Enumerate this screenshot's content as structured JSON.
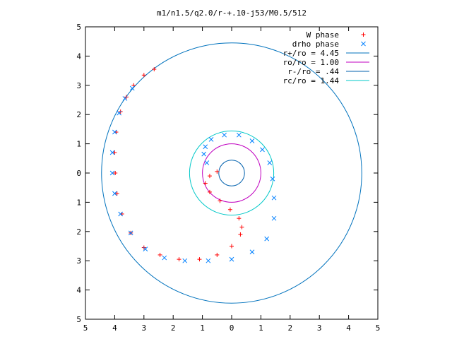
{
  "chart_data": {
    "type": "scatter",
    "title": "m1/n1.5/q2.0/r-+.10-j53/M0.5/512",
    "xlabel": "",
    "ylabel": "",
    "xlim": [
      -5,
      5
    ],
    "ylim": [
      -5,
      5
    ],
    "x_ticks": [
      -5,
      -4,
      -3,
      -2,
      -1,
      0,
      1,
      2,
      3,
      4,
      5
    ],
    "y_ticks": [
      -5,
      -4,
      -3,
      -2,
      -1,
      0,
      1,
      2,
      3,
      4,
      5
    ],
    "x_tick_labels": [
      "5",
      "4",
      "3",
      "2",
      "1",
      "0",
      "1",
      "2",
      "3",
      "4",
      "5"
    ],
    "y_tick_labels": [
      "5",
      "4",
      "3",
      "2",
      "1",
      "0",
      "1",
      "2",
      "3",
      "4",
      "5"
    ],
    "grid": false,
    "legend_position": "top-right",
    "series": [
      {
        "name": "W phase",
        "marker": "plus",
        "color": "#ff0000",
        "points": [
          [
            -2.65,
            3.55
          ],
          [
            -3.0,
            3.35
          ],
          [
            -3.35,
            3.0
          ],
          [
            -3.6,
            2.6
          ],
          [
            -3.8,
            2.1
          ],
          [
            -3.95,
            1.4
          ],
          [
            -4.0,
            0.7
          ],
          [
            -3.98,
            0.0
          ],
          [
            -3.92,
            -0.7
          ],
          [
            -3.75,
            -1.4
          ],
          [
            -3.45,
            -2.05
          ],
          [
            -3.0,
            -2.55
          ],
          [
            -2.45,
            -2.8
          ],
          [
            -1.8,
            -2.95
          ],
          [
            -1.1,
            -2.95
          ],
          [
            -0.5,
            -2.8
          ],
          [
            0.0,
            -2.5
          ],
          [
            0.3,
            -2.1
          ],
          [
            0.35,
            -1.85
          ],
          [
            0.25,
            -1.55
          ],
          [
            -0.05,
            -1.25
          ],
          [
            -0.4,
            -0.95
          ],
          [
            -0.75,
            -0.65
          ],
          [
            -0.9,
            -0.35
          ],
          [
            -0.75,
            -0.1
          ],
          [
            -0.5,
            0.05
          ]
        ]
      },
      {
        "name": "drho phase",
        "marker": "cross",
        "color": "#0080ff",
        "points": [
          [
            -3.4,
            2.9
          ],
          [
            -3.65,
            2.55
          ],
          [
            -3.85,
            2.05
          ],
          [
            -4.0,
            1.4
          ],
          [
            -4.08,
            0.7
          ],
          [
            -4.08,
            0.0
          ],
          [
            -4.0,
            -0.7
          ],
          [
            -3.8,
            -1.4
          ],
          [
            -3.45,
            -2.05
          ],
          [
            -2.95,
            -2.6
          ],
          [
            -2.3,
            -2.9
          ],
          [
            -1.6,
            -3.0
          ],
          [
            -0.8,
            -3.0
          ],
          [
            0.0,
            -2.95
          ],
          [
            0.7,
            -2.7
          ],
          [
            1.2,
            -2.25
          ],
          [
            1.45,
            -1.55
          ],
          [
            1.45,
            -0.85
          ],
          [
            1.4,
            -0.2
          ],
          [
            1.3,
            0.35
          ],
          [
            1.05,
            0.8
          ],
          [
            0.7,
            1.1
          ],
          [
            0.25,
            1.3
          ],
          [
            -0.25,
            1.3
          ],
          [
            -0.7,
            1.15
          ],
          [
            -0.9,
            0.9
          ],
          [
            -0.95,
            0.65
          ],
          [
            -0.85,
            0.35
          ]
        ]
      },
      {
        "name": "r+/ro = 4.45",
        "type": "circle",
        "radius": 4.45,
        "color": "#0072bd"
      },
      {
        "name": "ro/ro = 1.00",
        "type": "circle",
        "radius": 1.0,
        "color": "#c000c0"
      },
      {
        "name": "r-/ro = .44",
        "type": "circle",
        "radius": 0.44,
        "color": "#0060ad"
      },
      {
        "name": "rc/ro = 1.44",
        "type": "circle",
        "radius": 1.44,
        "color": "#00c8c8"
      }
    ]
  }
}
